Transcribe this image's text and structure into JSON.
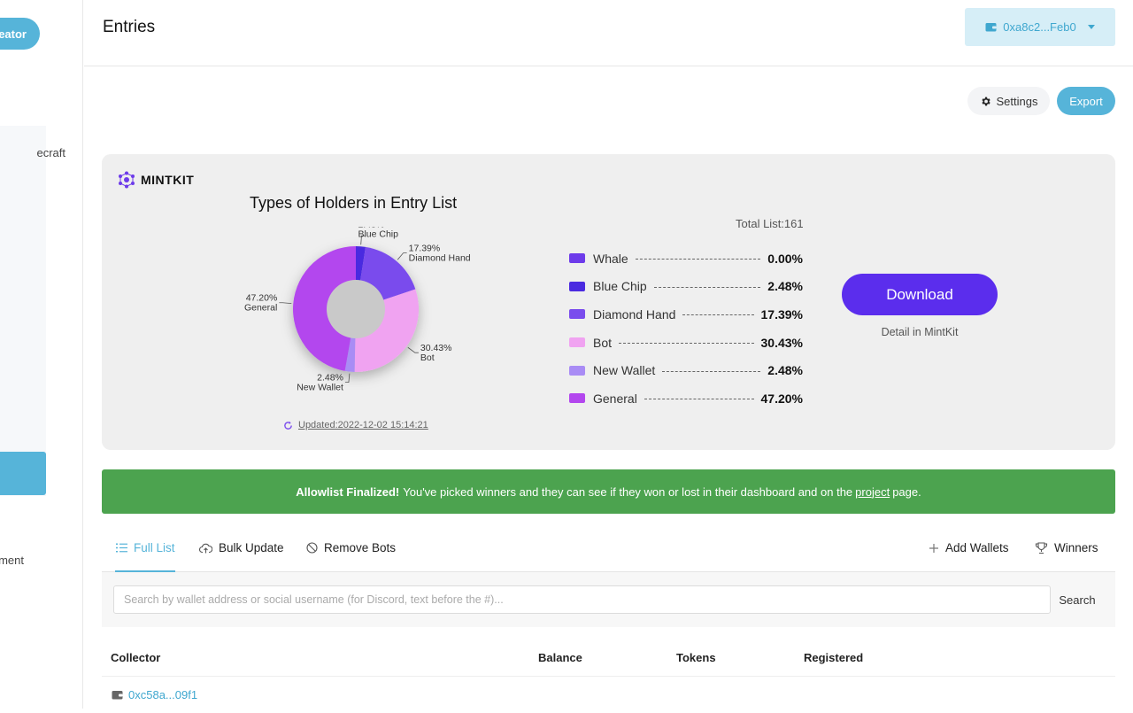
{
  "sidebar": {
    "creator_label": "eator",
    "item_craft": "ecraft",
    "item_ment": "ment"
  },
  "header": {
    "title": "Entries",
    "wallet": "0xa8c2...Feb0"
  },
  "actions": {
    "settings_label": "Settings",
    "export_label": "Export"
  },
  "card": {
    "brand": "MINTKIT",
    "total": "Total List:161",
    "download_label": "Download",
    "detail_label": "Detail in MintKit",
    "updated": "Updated:2022-12-02 15:14:21"
  },
  "chart_data": {
    "type": "pie",
    "title": "Types of Holders in Entry List",
    "slices": [
      {
        "name": "Whale",
        "value": 0.0,
        "label": "0.00%",
        "color": "#6d3bea"
      },
      {
        "name": "Blue Chip",
        "value": 2.48,
        "label": "2.48%",
        "color": "#4a2ae0"
      },
      {
        "name": "Diamond Hand",
        "value": 17.39,
        "label": "17.39%",
        "color": "#7a4ced"
      },
      {
        "name": "Bot",
        "value": 30.43,
        "label": "30.43%",
        "color": "#f0a3f1"
      },
      {
        "name": "New Wallet",
        "value": 2.48,
        "label": "2.48%",
        "color": "#a98cf5"
      },
      {
        "name": "General",
        "value": 47.2,
        "label": "47.20%",
        "color": "#b347ee"
      }
    ]
  },
  "banner": {
    "strong": "Allowlist Finalized!",
    "text": "You've picked winners and they can see if they won or lost in their dashboard and on the",
    "link": "project",
    "tail": "page."
  },
  "tabs": {
    "full_list": "Full List",
    "bulk_update": "Bulk Update",
    "remove_bots": "Remove Bots",
    "add_wallets": "Add Wallets",
    "winners": "Winners"
  },
  "search": {
    "placeholder": "Search by wallet address or social username (for Discord, text before the #)...",
    "button": "Search"
  },
  "table": {
    "columns": [
      "Collector",
      "Balance",
      "Tokens",
      "Registered"
    ],
    "rows": [
      {
        "collector": "0xc58a...09f1"
      }
    ]
  }
}
